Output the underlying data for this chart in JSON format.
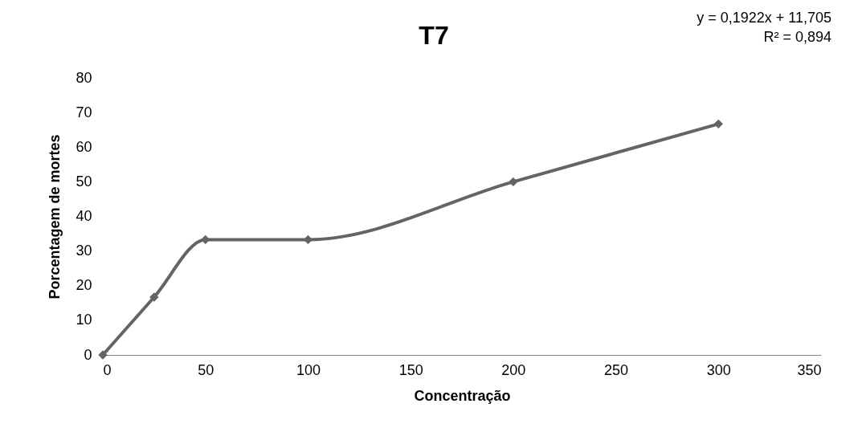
{
  "chart_data": {
    "type": "line",
    "title": "T7",
    "xlabel": "Concentração",
    "ylabel": "Porcentagem de mortes",
    "x": [
      0,
      25,
      50,
      100,
      200,
      300
    ],
    "series": [
      {
        "color": "#646464",
        "values": [
          0,
          16.7,
          33.3,
          33.3,
          50,
          66.7
        ]
      }
    ],
    "xlim": [
      0,
      350
    ],
    "xticks": [
      0,
      50,
      100,
      150,
      200,
      250,
      300,
      350
    ],
    "ylim": [
      0,
      80
    ],
    "yticks": [
      0,
      10,
      20,
      30,
      40,
      50,
      60,
      70,
      80
    ],
    "grid": false,
    "marker": "diamond",
    "line_style": "solid",
    "annotations": [
      "y = 0,1922x + 11,705",
      "R² = 0,894"
    ]
  }
}
